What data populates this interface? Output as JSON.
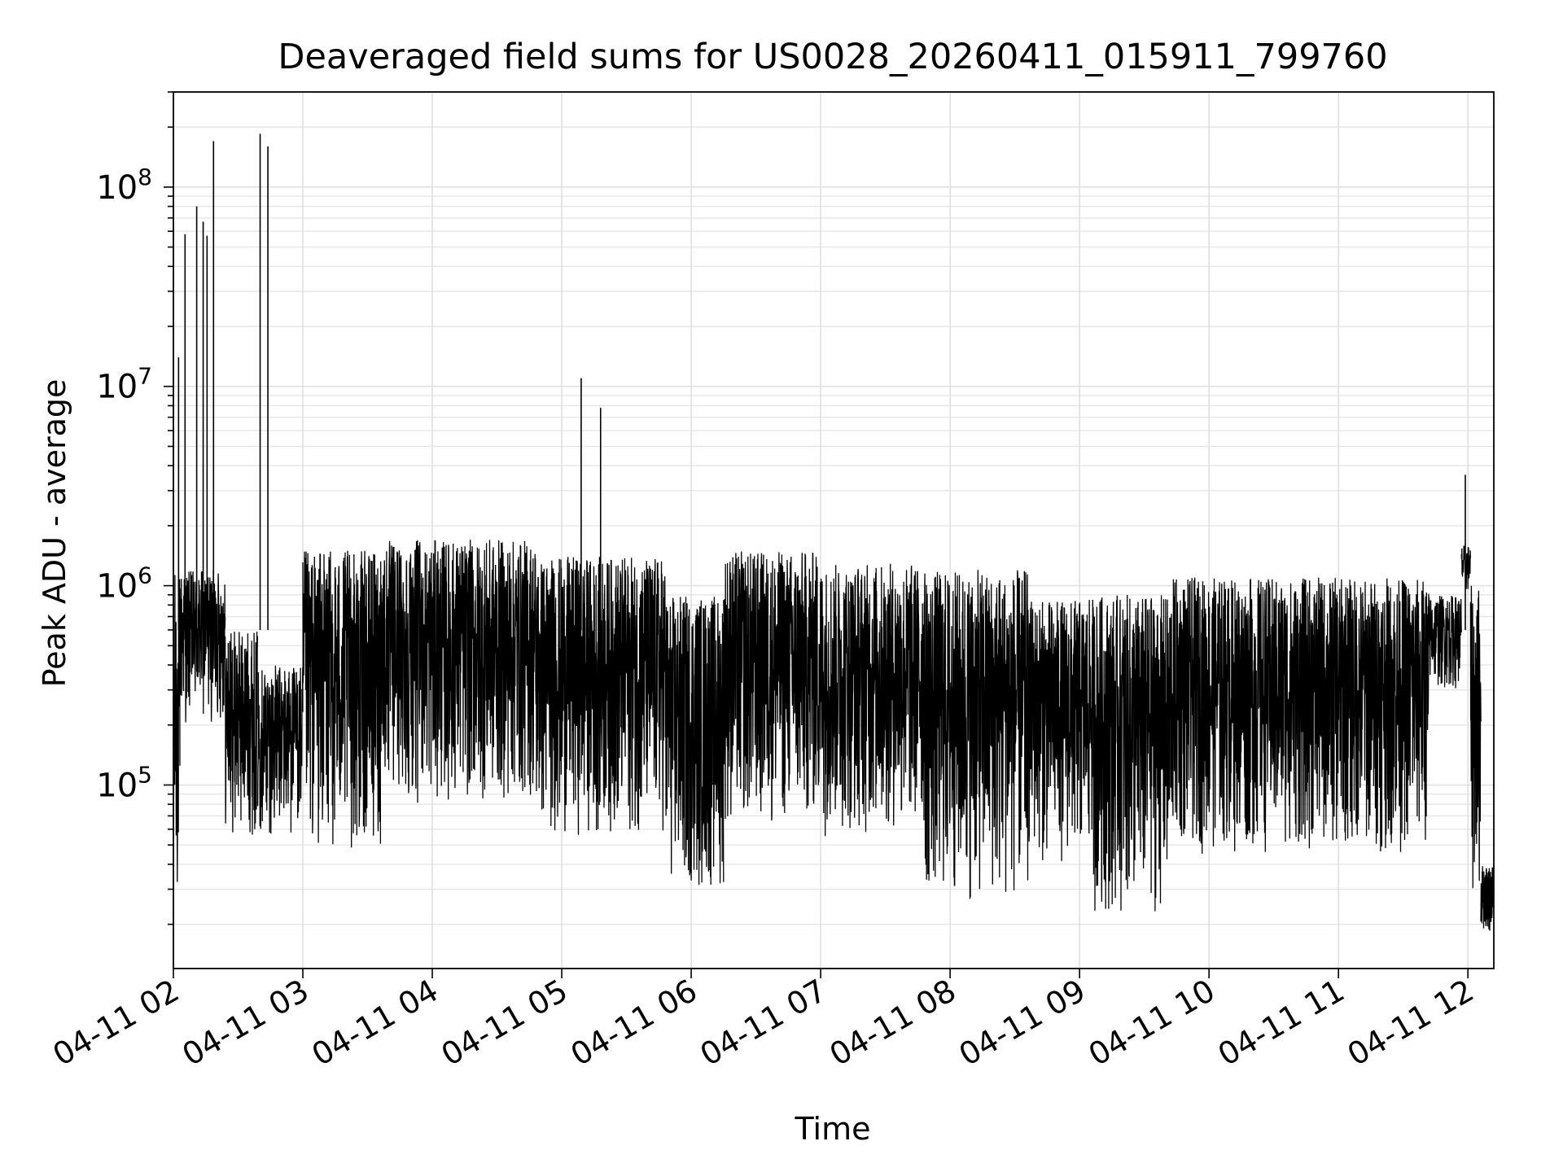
{
  "chart_data": {
    "type": "line",
    "title": "Deaveraged field sums for US0028_20260411_015911_799760",
    "xlabel": "Time",
    "ylabel": "Peak ADU - average",
    "yscale": "log",
    "ylim": [
      12000,
      300000000
    ],
    "xlim": [
      0,
      10.2
    ],
    "x_tick_values": [
      0,
      1,
      2,
      3,
      4,
      5,
      6,
      7,
      8,
      9,
      10
    ],
    "x_tick_labels": [
      "04-11 02",
      "04-11 03",
      "04-11 04",
      "04-11 05",
      "04-11 06",
      "04-11 07",
      "04-11 08",
      "04-11 09",
      "04-11 10",
      "04-11 11",
      "04-11 12"
    ],
    "y_ticks": [
      {
        "value": 100000,
        "base": "10",
        "exp": "5"
      },
      {
        "value": 1000000,
        "base": "10",
        "exp": "6"
      },
      {
        "value": 10000000,
        "base": "10",
        "exp": "7"
      },
      {
        "value": 100000000,
        "base": "10",
        "exp": "8"
      }
    ],
    "series": [
      {
        "name": "Peak ADU - average",
        "color": "#000000",
        "x_unit": "hours after 04-11 02:00",
        "segments": [
          {
            "x": [
              0.0,
              0.05
            ],
            "low": 20000,
            "high": 1200000
          },
          {
            "x": [
              0.05,
              0.4
            ],
            "low": 200000,
            "high": 1200000
          },
          {
            "x": [
              0.4,
              0.65
            ],
            "low": 55000,
            "high": 600000
          },
          {
            "x": [
              0.65,
              1.0
            ],
            "low": 55000,
            "high": 400000
          },
          {
            "x": [
              1.0,
              1.6
            ],
            "low": 45000,
            "high": 1500000
          },
          {
            "x": [
              1.6,
              2.8
            ],
            "low": 80000,
            "high": 1700000
          },
          {
            "x": [
              2.8,
              3.8
            ],
            "low": 55000,
            "high": 1400000
          },
          {
            "x": [
              3.8,
              4.25
            ],
            "low": 28000,
            "high": 900000
          },
          {
            "x": [
              4.25,
              5.0
            ],
            "low": 60000,
            "high": 1500000
          },
          {
            "x": [
              5.0,
              5.8
            ],
            "low": 55000,
            "high": 1300000
          },
          {
            "x": [
              5.8,
              6.6
            ],
            "low": 25000,
            "high": 1200000
          },
          {
            "x": [
              6.6,
              7.1
            ],
            "low": 40000,
            "high": 850000
          },
          {
            "x": [
              7.1,
              7.7
            ],
            "low": 22000,
            "high": 900000
          },
          {
            "x": [
              7.7,
              9.7
            ],
            "low": 45000,
            "high": 1100000
          },
          {
            "x": [
              9.7,
              9.95
            ],
            "low": 300000,
            "high": 900000
          },
          {
            "x": [
              9.95,
              10.02
            ],
            "low": 900000,
            "high": 1600000
          },
          {
            "x": [
              10.02,
              10.1
            ],
            "low": 25000,
            "high": 1000000
          },
          {
            "x": [
              10.1,
              10.2
            ],
            "low": 18000,
            "high": 40000
          }
        ],
        "spikes": [
          {
            "x": 0.04,
            "y": 14000000
          },
          {
            "x": 0.09,
            "y": 58000000
          },
          {
            "x": 0.18,
            "y": 80000000
          },
          {
            "x": 0.23,
            "y": 67000000
          },
          {
            "x": 0.26,
            "y": 57000000
          },
          {
            "x": 0.31,
            "y": 170000000
          },
          {
            "x": 0.67,
            "y": 185000000
          },
          {
            "x": 0.73,
            "y": 160000000
          },
          {
            "x": 3.15,
            "y": 11000000
          },
          {
            "x": 3.3,
            "y": 7800000
          },
          {
            "x": 9.98,
            "y": 3600000
          }
        ]
      }
    ]
  }
}
